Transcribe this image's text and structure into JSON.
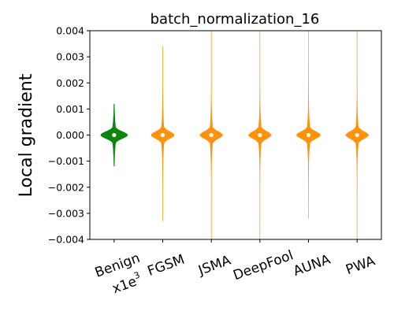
{
  "chart_data": {
    "type": "violin",
    "title": "batch_normalization_16",
    "ylabel": "Local gradient",
    "xlabel": "",
    "ylim": [
      -0.004,
      0.004
    ],
    "yticks": [
      0.004,
      0.003,
      0.002,
      0.001,
      0.0,
      -0.001,
      -0.002,
      -0.003,
      -0.004
    ],
    "ytick_labels": [
      "0.004",
      "0.003",
      "0.002",
      "0.001",
      "0.000",
      "−0.001",
      "−0.002",
      "−0.003",
      "−0.004"
    ],
    "categories": [
      "Benign",
      "FGSM",
      "JSMA",
      "DeepFool",
      "AUNA",
      "PWA"
    ],
    "benign_scale_label": {
      "base": "x1e",
      "exponent": "3"
    },
    "colors": {
      "Benign": "#008000",
      "attack": "#ff8c00",
      "median": "#ffffff"
    },
    "violins": [
      {
        "name": "Benign",
        "median": 0.0,
        "min": -0.0012,
        "max": 0.0012,
        "halfwidth": 0.55
      },
      {
        "name": "FGSM",
        "median": 0.0,
        "min": -0.0033,
        "max": 0.0034,
        "halfwidth": 0.48
      },
      {
        "name": "JSMA",
        "median": 0.0,
        "min": -0.004,
        "max": 0.004,
        "halfwidth": 0.48
      },
      {
        "name": "DeepFool",
        "median": 0.0,
        "min": -0.004,
        "max": 0.004,
        "halfwidth": 0.48
      },
      {
        "name": "AUNA",
        "median": 0.0,
        "min": -0.0032,
        "max": 0.004,
        "halfwidth": 0.5
      },
      {
        "name": "PWA",
        "median": 0.0,
        "min": -0.004,
        "max": 0.004,
        "halfwidth": 0.48
      }
    ]
  }
}
